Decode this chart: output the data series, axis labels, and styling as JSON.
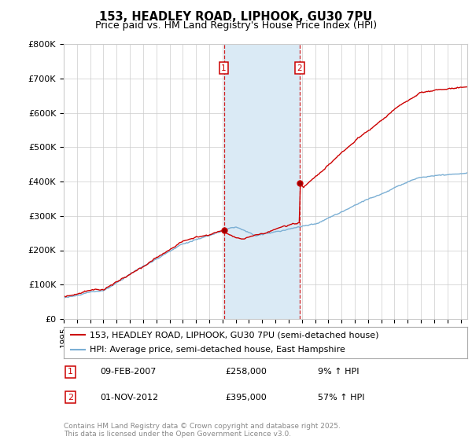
{
  "title": "153, HEADLEY ROAD, LIPHOOK, GU30 7PU",
  "subtitle": "Price paid vs. HM Land Registry's House Price Index (HPI)",
  "ylim": [
    0,
    800000
  ],
  "yticks": [
    0,
    100000,
    200000,
    300000,
    400000,
    500000,
    600000,
    700000,
    800000
  ],
  "ytick_labels": [
    "£0",
    "£100K",
    "£200K",
    "£300K",
    "£400K",
    "£500K",
    "£600K",
    "£700K",
    "£800K"
  ],
  "xlim_start": 1995.0,
  "xlim_end": 2025.5,
  "transaction1_x": 2007.1,
  "transaction1_y": 258000,
  "transaction2_x": 2012.83,
  "transaction2_y": 395000,
  "transaction1_date": "09-FEB-2007",
  "transaction1_price": "£258,000",
  "transaction1_hpi": "9% ↑ HPI",
  "transaction2_date": "01-NOV-2012",
  "transaction2_price": "£395,000",
  "transaction2_hpi": "57% ↑ HPI",
  "red_line_color": "#cc0000",
  "blue_line_color": "#7bafd4",
  "shade_color": "#daeaf5",
  "vline_color": "#cc0000",
  "grid_color": "#cccccc",
  "bg_color": "#ffffff",
  "legend_line1": "153, HEADLEY ROAD, LIPHOOK, GU30 7PU (semi-detached house)",
  "legend_line2": "HPI: Average price, semi-detached house, East Hampshire",
  "footer": "Contains HM Land Registry data © Crown copyright and database right 2025.\nThis data is licensed under the Open Government Licence v3.0.",
  "marker_box_color": "#cc0000"
}
